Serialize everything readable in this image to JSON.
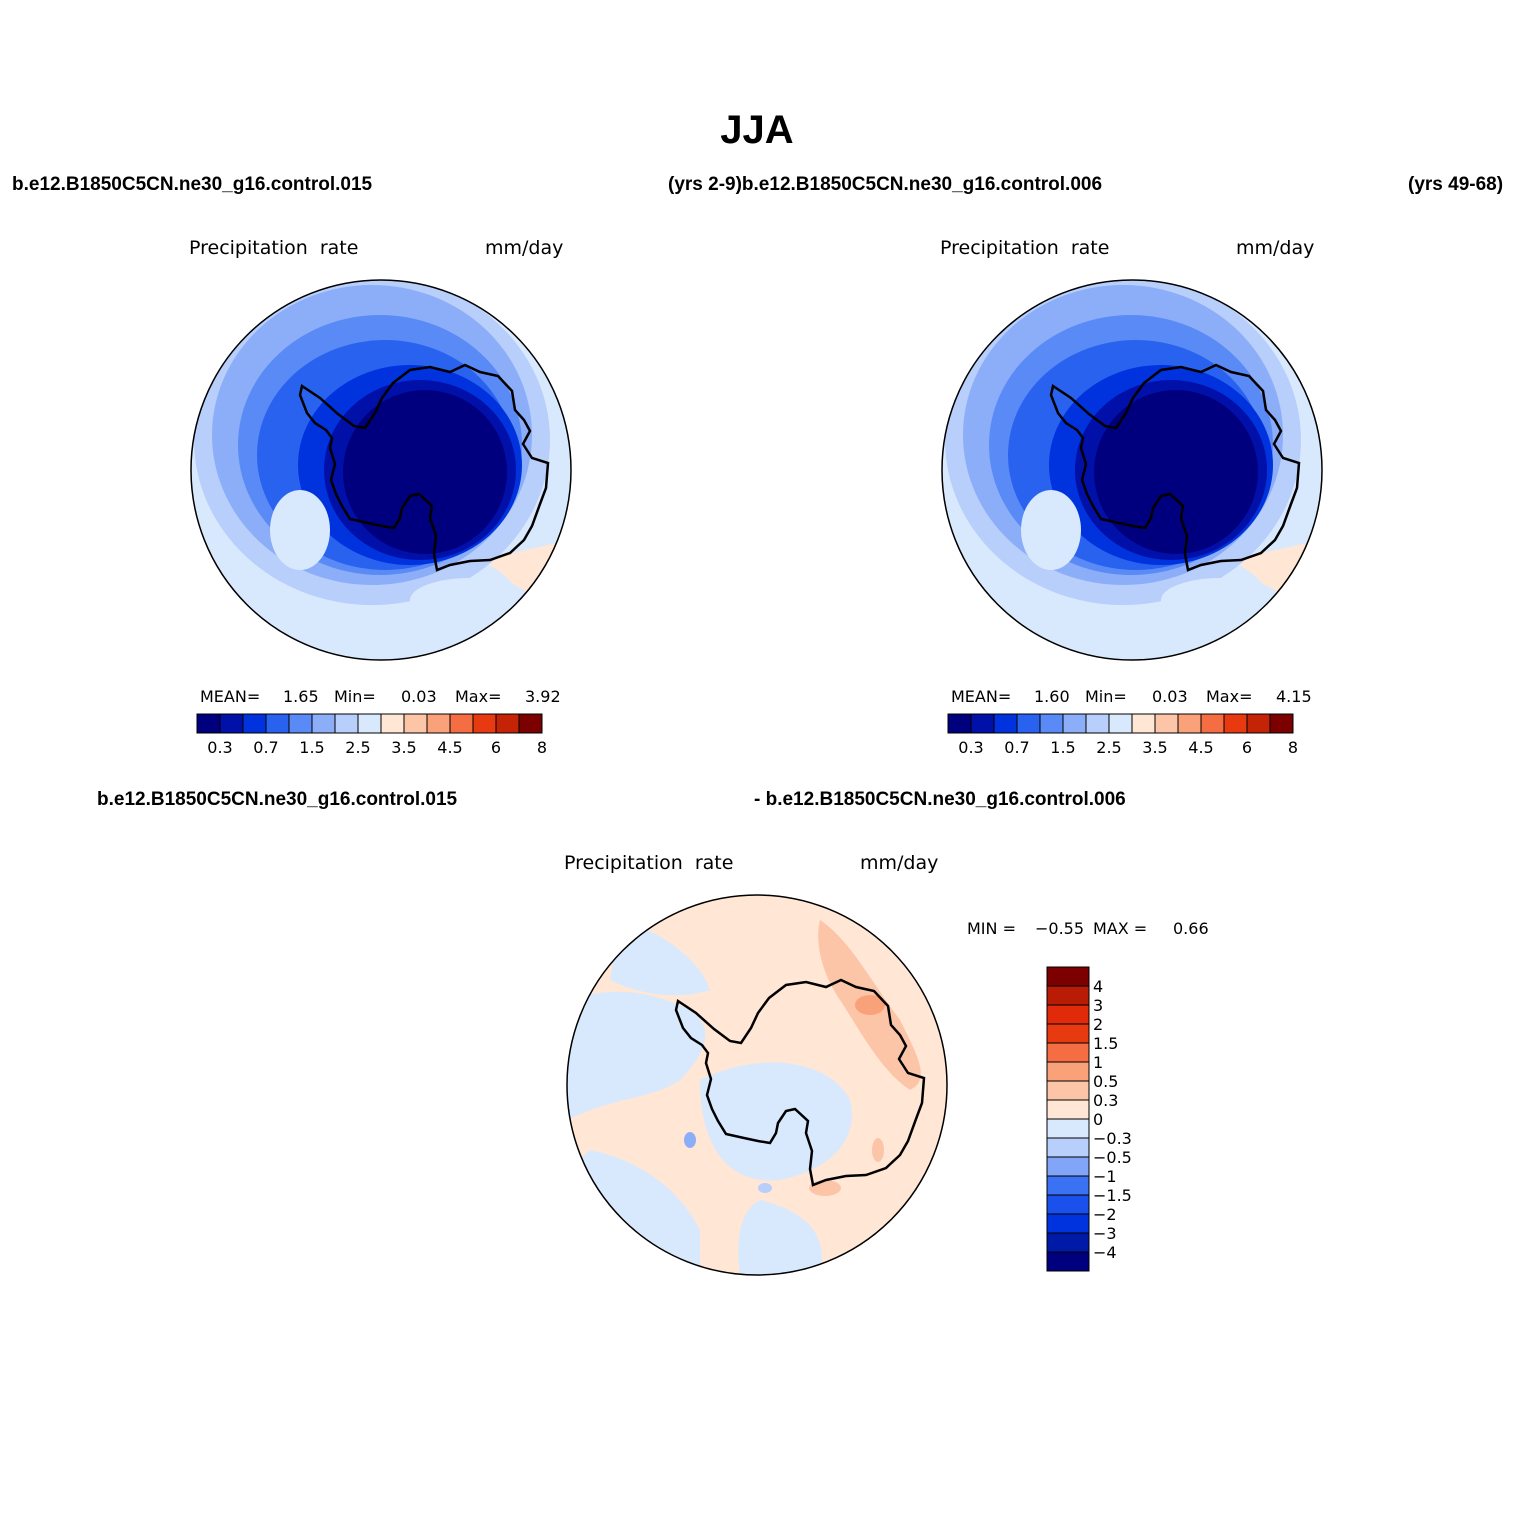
{
  "page": {
    "title": "JJA",
    "header_left": "b.e12.B1850C5CN.ne30_g16.control.015",
    "header_mid": "(yrs 2-9)b.e12.B1850C5CN.ne30_g16.control.006",
    "header_right": "(yrs 49-68)",
    "diff_left": "b.e12.B1850C5CN.ne30_g16.control.015",
    "diff_right": "- b.e12.B1850C5CN.ne30_g16.control.006"
  },
  "panels": [
    {
      "id": "case1",
      "variable": "Precipitation  rate",
      "units": "mm/day",
      "stats": {
        "mean_label": "MEAN=",
        "mean": "1.65",
        "min_label": "Min=",
        "min": "0.03",
        "max_label": "Max=",
        "max": "3.92"
      }
    },
    {
      "id": "case2",
      "variable": "Precipitation  rate",
      "units": "mm/day",
      "stats": {
        "mean_label": "MEAN=",
        "mean": "1.60",
        "min_label": "Min=",
        "min": "0.03",
        "max_label": "Max=",
        "max": "4.15"
      }
    },
    {
      "id": "diff",
      "variable": "Precipitation  rate",
      "units": "mm/day",
      "stats": {
        "min_label": "MIN =",
        "min": "−0.55",
        "max_label": "MAX =",
        "max": "0.66"
      }
    }
  ],
  "colorbar_abs": {
    "colors": [
      "#00007f",
      "#0010a8",
      "#0033dd",
      "#2a62f0",
      "#5a8af5",
      "#8caef8",
      "#b8cefb",
      "#d9e9fd",
      "#ffe6d5",
      "#fcc5a8",
      "#f9a27a",
      "#f56d42",
      "#e83a10",
      "#c42305",
      "#7d0000"
    ],
    "tick_labels": [
      "0.3",
      "0.7",
      "1.5",
      "2.5",
      "3.5",
      "4.5",
      "6",
      "8"
    ]
  },
  "colorbar_diff": {
    "colors": [
      "#00007f",
      "#001aa8",
      "#0033dd",
      "#1a50eb",
      "#3a72f3",
      "#82a5f8",
      "#b8cefb",
      "#d9e9fd",
      "#ffe6d5",
      "#fcc5a8",
      "#f9a27a",
      "#f56d42",
      "#e83a10",
      "#e02a0a",
      "#b81c05",
      "#7d0000"
    ],
    "tick_labels": [
      "4",
      "3",
      "2",
      "1.5",
      "1",
      "0.5",
      "0.3",
      "0",
      "−0.3",
      "−0.5",
      "−1",
      "−1.5",
      "−2",
      "−3",
      "−4"
    ]
  },
  "map_colors": {
    "deep": "#00007f",
    "blue1": "#0010a8",
    "blue2": "#0033dd",
    "blue3": "#2a62f0",
    "blue4": "#5a8af5",
    "blue5": "#8caef8",
    "light_blue": "#b8cefb",
    "pale_blue": "#d9e9fd",
    "pale_orange": "#ffe6d5",
    "light_orange": "#fcc5a8",
    "orange": "#f9a27a"
  }
}
